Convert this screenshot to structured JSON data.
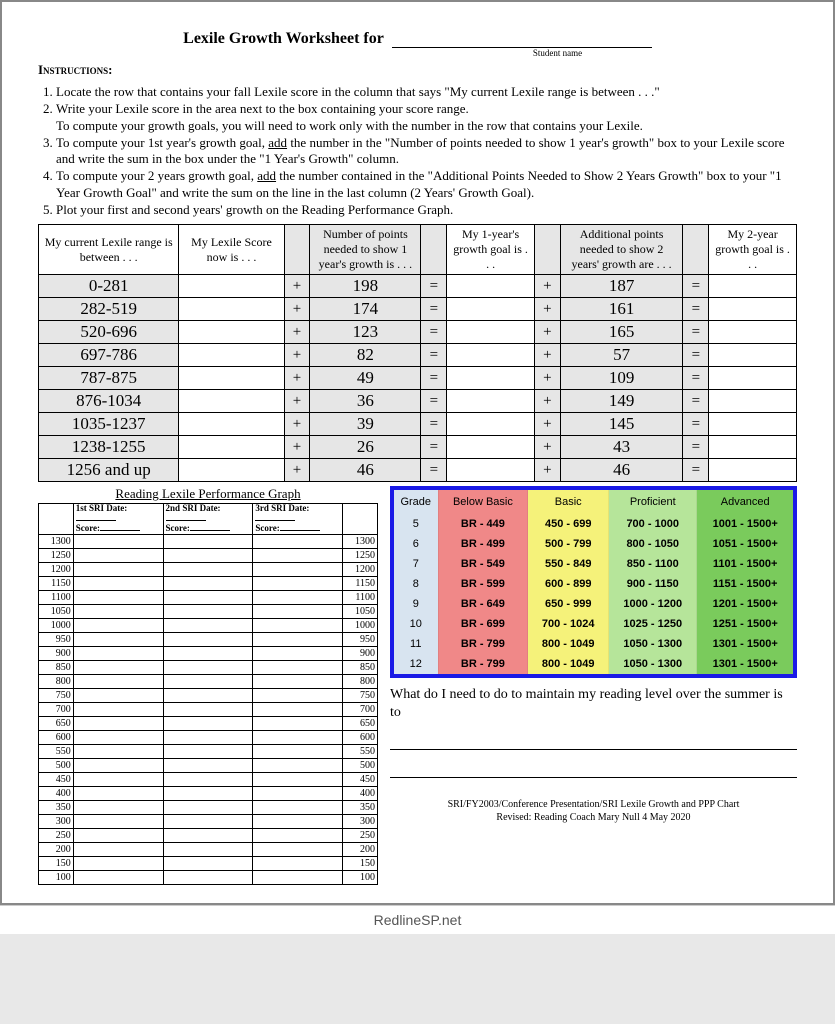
{
  "title": "Lexile Growth Worksheet for",
  "student_caption": "Student name",
  "instructions_label": "Instructions",
  "instructions": [
    "Locate the row that contains your fall Lexile score in the column that says \"My current Lexile range is between . . .\"",
    "Write your Lexile score in the area next to the box containing your score range.\nTo compute your growth goals, you will need to work only with the number in the row that contains your Lexile.",
    "To compute your 1st year's growth goal, add the number in the \"Number of points needed to show 1 year's growth\" box to your Lexile score and write the sum in the box under the \"1 Year's Growth\" column.",
    "To compute your 2 years growth goal, add the number contained in the \"Additional Points Needed to Show 2 Years Growth\" box to your \"1 Year Growth Goal\" and write the sum on the line in the last column (2 Years' Growth Goal).",
    "Plot your first and second years' growth on the Reading Performance Graph."
  ],
  "growth_headers": {
    "range": "My current Lexile range is between . . .",
    "score": "My Lexile Score now is . . .",
    "pts1": "Number of points needed to show 1 year's growth is . . .",
    "goal1": "My 1-year's growth goal is . . .",
    "pts2": "Additional points needed to show 2 years' growth are . . .",
    "goal2": "My 2-year growth goal is . . ."
  },
  "growth_rows": [
    {
      "range": "0-281",
      "pts1": "198",
      "pts2": "187"
    },
    {
      "range": "282-519",
      "pts1": "174",
      "pts2": "161"
    },
    {
      "range": "520-696",
      "pts1": "123",
      "pts2": "165"
    },
    {
      "range": "697-786",
      "pts1": "82",
      "pts2": "57"
    },
    {
      "range": "787-875",
      "pts1": "49",
      "pts2": "109"
    },
    {
      "range": "876-1034",
      "pts1": "36",
      "pts2": "149"
    },
    {
      "range": "1035-1237",
      "pts1": "39",
      "pts2": "145"
    },
    {
      "range": "1238-1255",
      "pts1": "26",
      "pts2": "43"
    },
    {
      "range": "1256 and up",
      "pts1": "46",
      "pts2": "46"
    }
  ],
  "op_plus": "+",
  "op_eq": "=",
  "perf_title": "Reading Lexile Performance Graph",
  "sri_labels": {
    "date": "SRI Date:",
    "score": "Score:",
    "n1": "1st",
    "n2": "2nd",
    "n3": "3rd"
  },
  "perf_ticks": [
    1300,
    1250,
    1200,
    1150,
    1100,
    1050,
    1000,
    950,
    900,
    850,
    800,
    750,
    700,
    650,
    600,
    550,
    500,
    450,
    400,
    350,
    300,
    250,
    200,
    150,
    100
  ],
  "bands_headers": {
    "grade": "Grade",
    "below": "Below Basic",
    "basic": "Basic",
    "prof": "Proficient",
    "adv": "Advanced"
  },
  "bands_rows": [
    {
      "g": "5",
      "bb": "BR  -  449",
      "b": "450  -  699",
      "p": "700  -  1000",
      "a": "1001  -  1500+"
    },
    {
      "g": "6",
      "bb": "BR  -  499",
      "b": "500  -  799",
      "p": "800  -  1050",
      "a": "1051  -  1500+"
    },
    {
      "g": "7",
      "bb": "BR  -  549",
      "b": "550  -  849",
      "p": "850  -  1100",
      "a": "1101  -  1500+"
    },
    {
      "g": "8",
      "bb": "BR  -  599",
      "b": "600  -  899",
      "p": "900  -  1150",
      "a": "1151  -  1500+"
    },
    {
      "g": "9",
      "bb": "BR  -  649",
      "b": "650  -  999",
      "p": "1000  -  1200",
      "a": "1201  -  1500+"
    },
    {
      "g": "10",
      "bb": "BR  -  699",
      "b": "700  -  1024",
      "p": "1025  -  1250",
      "a": "1251  -  1500+"
    },
    {
      "g": "11",
      "bb": "BR  -  799",
      "b": "800  -  1049",
      "p": "1050  -  1300",
      "a": "1301  -  1500+"
    },
    {
      "g": "12",
      "bb": "BR  -  799",
      "b": "800  -  1049",
      "p": "1050  -  1300",
      "a": "1301  -  1500+"
    }
  ],
  "summer_q": "What do I need to do to maintain my reading level over the summer is to",
  "footer1": "SRI/FY2003/Conference Presentation/SRI Lexile Growth and PPP Chart",
  "footer2": "Revised: Reading Coach Mary Null 4 May 2020",
  "watermark": "RedlineSP.net"
}
